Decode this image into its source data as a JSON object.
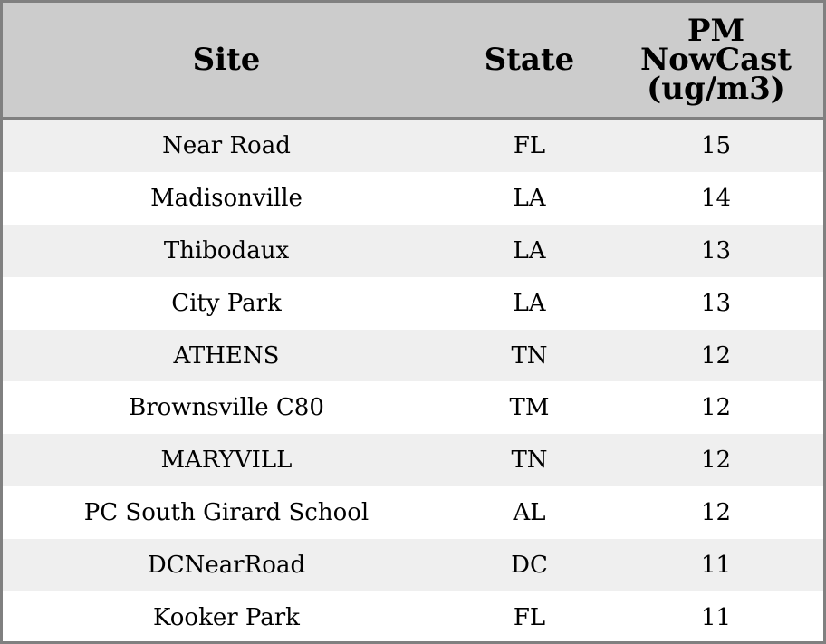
{
  "chart_data": {
    "type": "table",
    "columns": [
      "Site",
      "State",
      "PM\nNowCast\n(ug/m3)"
    ],
    "rows": [
      [
        "Near Road",
        "FL",
        "15"
      ],
      [
        "Madisonville",
        "LA",
        "14"
      ],
      [
        "Thibodaux",
        "LA",
        "13"
      ],
      [
        "City Park",
        "LA",
        "13"
      ],
      [
        "ATHENS",
        "TN",
        "12"
      ],
      [
        "Brownsville C80",
        "TM",
        "12"
      ],
      [
        "MARYVILL",
        "TN",
        "12"
      ],
      [
        "PC South Girard School",
        "AL",
        "12"
      ],
      [
        "DCNearRoad",
        "DC",
        "11"
      ],
      [
        "Kooker Park",
        "FL",
        "11"
      ]
    ]
  },
  "colors": {
    "header_background": "#cccccc",
    "border": "#808080",
    "row_shade": "#efefef",
    "row_plain": "#ffffff"
  }
}
